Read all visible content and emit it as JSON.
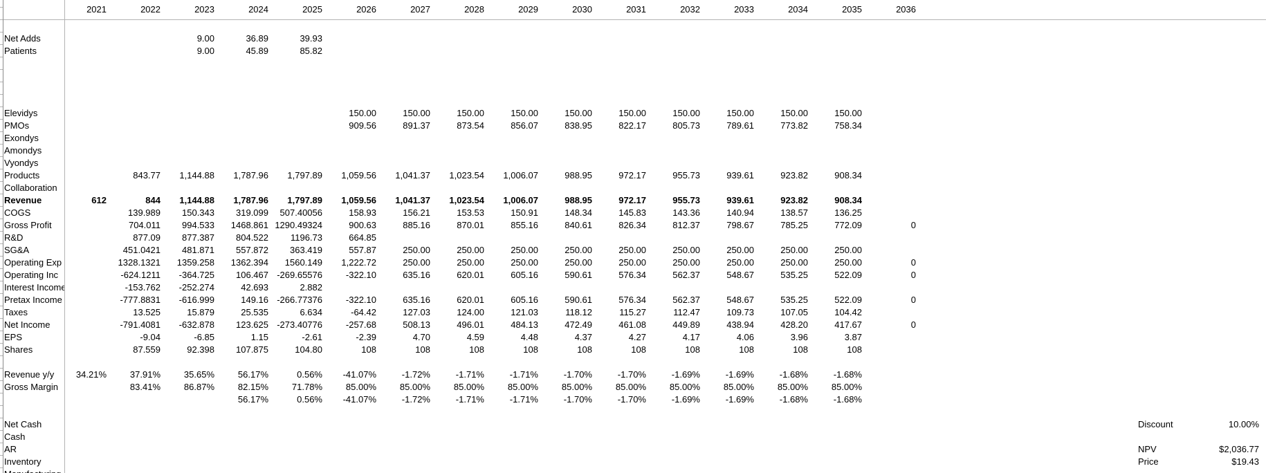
{
  "sheet": {
    "years": [
      "2021",
      "2022",
      "2023",
      "2024",
      "2025",
      "2026",
      "2027",
      "2028",
      "2029",
      "2030",
      "2031",
      "2032",
      "2033",
      "2034",
      "2035",
      "2036"
    ],
    "colors": {
      "gridline": "#b3b3b3",
      "row_header_edge": "#8a8a8a",
      "text": "#000000",
      "background": "#ffffff"
    },
    "rows": [
      {
        "label": "",
        "values": []
      },
      {
        "label": "Net Adds",
        "values": [
          "",
          "",
          "9.00",
          "36.89",
          "39.93",
          "",
          "",
          "",
          "",
          "",
          "",
          "",
          "",
          "",
          "",
          ""
        ]
      },
      {
        "label": "Patients",
        "values": [
          "",
          "",
          "9.00",
          "45.89",
          "85.82",
          "",
          "",
          "",
          "",
          "",
          "",
          "",
          "",
          "",
          "",
          ""
        ]
      },
      {
        "label": "",
        "values": []
      },
      {
        "label": "",
        "values": []
      },
      {
        "label": "",
        "values": []
      },
      {
        "label": "",
        "values": []
      },
      {
        "label": "Elevidys",
        "values": [
          "",
          "",
          "",
          "",
          "",
          "150.00",
          "150.00",
          "150.00",
          "150.00",
          "150.00",
          "150.00",
          "150.00",
          "150.00",
          "150.00",
          "150.00",
          ""
        ]
      },
      {
        "label": "PMOs",
        "values": [
          "",
          "",
          "",
          "",
          "",
          "909.56",
          "891.37",
          "873.54",
          "856.07",
          "838.95",
          "822.17",
          "805.73",
          "789.61",
          "773.82",
          "758.34",
          ""
        ]
      },
      {
        "label": "Exondys",
        "values": []
      },
      {
        "label": "Amondys",
        "values": []
      },
      {
        "label": "Vyondys",
        "values": []
      },
      {
        "label": "Products",
        "values": [
          "",
          "843.77",
          "1,144.88",
          "1,787.96",
          "1,797.89",
          "1,059.56",
          "1,041.37",
          "1,023.54",
          "1,006.07",
          "988.95",
          "972.17",
          "955.73",
          "939.61",
          "923.82",
          "908.34",
          ""
        ]
      },
      {
        "label": "Collaboration",
        "values": []
      },
      {
        "label": "Revenue",
        "bold": true,
        "values": [
          "612",
          "844",
          "1,144.88",
          "1,787.96",
          "1,797.89",
          "1,059.56",
          "1,041.37",
          "1,023.54",
          "1,006.07",
          "988.95",
          "972.17",
          "955.73",
          "939.61",
          "923.82",
          "908.34",
          ""
        ]
      },
      {
        "label": "COGS",
        "values": [
          "",
          "139.989",
          "150.343",
          "319.099",
          "507.40056",
          "158.93",
          "156.21",
          "153.53",
          "150.91",
          "148.34",
          "145.83",
          "143.36",
          "140.94",
          "138.57",
          "136.25",
          ""
        ]
      },
      {
        "label": "Gross Profit",
        "values": [
          "",
          "704.011",
          "994.533",
          "1468.861",
          "1290.49324",
          "900.63",
          "885.16",
          "870.01",
          "855.16",
          "840.61",
          "826.34",
          "812.37",
          "798.67",
          "785.25",
          "772.09",
          "0"
        ]
      },
      {
        "label": "R&D",
        "values": [
          "",
          "877.09",
          "877.387",
          "804.522",
          "1196.73",
          "664.85",
          "",
          "",
          "",
          "",
          "",
          "",
          "",
          "",
          "",
          ""
        ]
      },
      {
        "label": "SG&A",
        "values": [
          "",
          "451.0421",
          "481.871",
          "557.872",
          "363.419",
          "557.87",
          "250.00",
          "250.00",
          "250.00",
          "250.00",
          "250.00",
          "250.00",
          "250.00",
          "250.00",
          "250.00",
          ""
        ]
      },
      {
        "label": "Operating Exp",
        "values": [
          "",
          "1328.1321",
          "1359.258",
          "1362.394",
          "1560.149",
          "1,222.72",
          "250.00",
          "250.00",
          "250.00",
          "250.00",
          "250.00",
          "250.00",
          "250.00",
          "250.00",
          "250.00",
          "0"
        ]
      },
      {
        "label": "Operating Inc",
        "values": [
          "",
          "-624.1211",
          "-364.725",
          "106.467",
          "-269.65576",
          "-322.10",
          "635.16",
          "620.01",
          "605.16",
          "590.61",
          "576.34",
          "562.37",
          "548.67",
          "535.25",
          "522.09",
          "0"
        ]
      },
      {
        "label": "Interest Income",
        "values": [
          "",
          "-153.762",
          "-252.274",
          "42.693",
          "2.882",
          "",
          "",
          "",
          "",
          "",
          "",
          "",
          "",
          "",
          "",
          ""
        ]
      },
      {
        "label": "Pretax Income",
        "values": [
          "",
          "-777.8831",
          "-616.999",
          "149.16",
          "-266.77376",
          "-322.10",
          "635.16",
          "620.01",
          "605.16",
          "590.61",
          "576.34",
          "562.37",
          "548.67",
          "535.25",
          "522.09",
          "0"
        ]
      },
      {
        "label": "Taxes",
        "values": [
          "",
          "13.525",
          "15.879",
          "25.535",
          "6.634",
          "-64.42",
          "127.03",
          "124.00",
          "121.03",
          "118.12",
          "115.27",
          "112.47",
          "109.73",
          "107.05",
          "104.42",
          ""
        ]
      },
      {
        "label": "Net Income",
        "values": [
          "",
          "-791.4081",
          "-632.878",
          "123.625",
          "-273.40776",
          "-257.68",
          "508.13",
          "496.01",
          "484.13",
          "472.49",
          "461.08",
          "449.89",
          "438.94",
          "428.20",
          "417.67",
          "0"
        ]
      },
      {
        "label": "EPS",
        "values": [
          "",
          "-9.04",
          "-6.85",
          "1.15",
          "-2.61",
          "-2.39",
          "4.70",
          "4.59",
          "4.48",
          "4.37",
          "4.27",
          "4.17",
          "4.06",
          "3.96",
          "3.87",
          ""
        ]
      },
      {
        "label": "Shares",
        "values": [
          "",
          "87.559",
          "92.398",
          "107.875",
          "104.80",
          "108",
          "108",
          "108",
          "108",
          "108",
          "108",
          "108",
          "108",
          "108",
          "108",
          ""
        ]
      },
      {
        "label": "",
        "values": []
      },
      {
        "label": "Revenue y/y",
        "values": [
          "34.21%",
          "37.91%",
          "35.65%",
          "56.17%",
          "0.56%",
          "-41.07%",
          "-1.72%",
          "-1.71%",
          "-1.71%",
          "-1.70%",
          "-1.70%",
          "-1.69%",
          "-1.69%",
          "-1.68%",
          "-1.68%",
          ""
        ]
      },
      {
        "label": "Gross Margin",
        "values": [
          "",
          "83.41%",
          "86.87%",
          "82.15%",
          "71.78%",
          "85.00%",
          "85.00%",
          "85.00%",
          "85.00%",
          "85.00%",
          "85.00%",
          "85.00%",
          "85.00%",
          "85.00%",
          "85.00%",
          ""
        ]
      },
      {
        "label": "",
        "values": [
          "",
          "",
          "",
          "56.17%",
          "0.56%",
          "-41.07%",
          "-1.72%",
          "-1.71%",
          "-1.71%",
          "-1.70%",
          "-1.70%",
          "-1.69%",
          "-1.69%",
          "-1.68%",
          "-1.68%",
          ""
        ]
      },
      {
        "label": "",
        "values": []
      },
      {
        "label": "Net Cash",
        "values": []
      },
      {
        "label": "Cash",
        "values": []
      },
      {
        "label": "AR",
        "values": []
      },
      {
        "label": "Inventory",
        "values": []
      },
      {
        "label": "Manufacturing",
        "values": []
      }
    ],
    "summary": {
      "discount_label": "Discount",
      "discount_value": "10.00%",
      "npv_label": "NPV",
      "npv_value": "$2,036.77",
      "price_label": "Price",
      "price_value": "$19.43"
    }
  }
}
